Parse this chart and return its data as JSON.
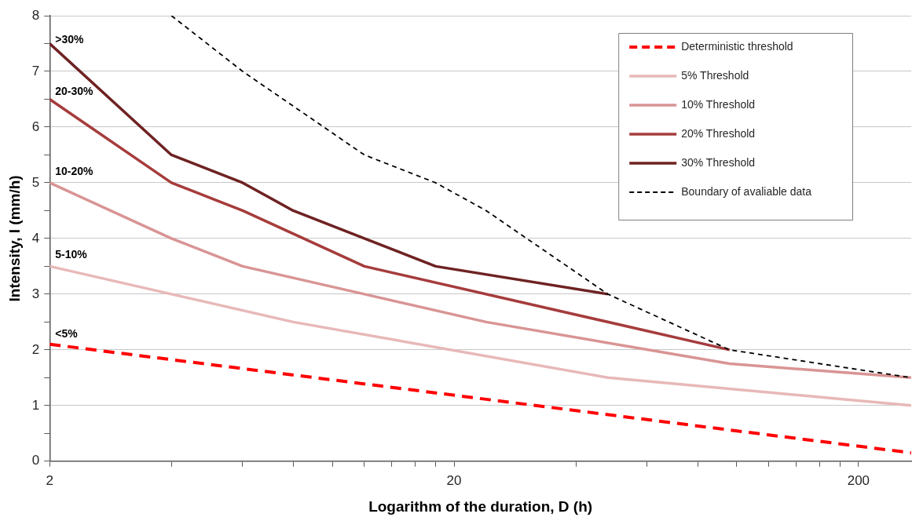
{
  "chart_data": {
    "type": "line",
    "xlabel": "Logarithm of the duration, D (h)",
    "ylabel": "Intensity, I (mm/h)",
    "log": "x",
    "xlim": [
      2,
      270
    ],
    "xticks": [
      2,
      {
        "value": 4,
        "label": null
      },
      {
        "value": 6,
        "label": null
      },
      {
        "value": 8,
        "label": null
      },
      {
        "value": 10,
        "label": null
      },
      {
        "value": 12,
        "label": null
      },
      {
        "value": 14,
        "label": null
      },
      {
        "value": 16,
        "label": null
      },
      {
        "value": 18,
        "label": null
      },
      20,
      {
        "value": 40,
        "label": null
      },
      {
        "value": 60,
        "label": null
      },
      {
        "value": 80,
        "label": null
      },
      {
        "value": 100,
        "label": null
      },
      {
        "value": 120,
        "label": null
      },
      {
        "value": 140,
        "label": null
      },
      {
        "value": 160,
        "label": null
      },
      {
        "value": 180,
        "label": null
      },
      200
    ],
    "ylim": [
      0,
      8
    ],
    "yticks": [
      0,
      {
        "value": 0.5,
        "label": null
      },
      1,
      {
        "value": 1.5,
        "label": null
      },
      2,
      {
        "value": 2.5,
        "label": null
      },
      3,
      {
        "value": 3.5,
        "label": null
      },
      4,
      {
        "value": 4.5,
        "label": null
      },
      5,
      {
        "value": 5.5,
        "label": null
      },
      6,
      {
        "value": 6.5,
        "label": null
      },
      7,
      {
        "value": 7.5,
        "label": null
      },
      8
    ],
    "grid": "y",
    "legend": "top right",
    "marker": "none",
    "series": [
      {
        "name": "Deterministic threshold",
        "color": "#ff0000",
        "line_style": "dashed",
        "x": [
          2,
          270
        ],
        "values": [
          2.1,
          0.15
        ]
      },
      {
        "name": "5% Threshold",
        "color": "#e8b8b8",
        "line_style": "solid",
        "x": [
          2,
          4,
          8,
          48,
          270
        ],
        "values": [
          3.5,
          3.0,
          2.5,
          1.5,
          1.0
        ]
      },
      {
        "name": "10% Threshold",
        "color": "#d99494",
        "line_style": "solid",
        "x": [
          2,
          4,
          6,
          12,
          24,
          96,
          270
        ],
        "values": [
          5.0,
          4.0,
          3.5,
          3.0,
          2.5,
          1.75,
          1.5
        ]
      },
      {
        "name": "20% Threshold",
        "color": "#a63c3c",
        "line_style": "solid",
        "x": [
          2,
          4,
          6,
          12,
          96
        ],
        "values": [
          6.5,
          5.0,
          4.5,
          3.5,
          2.0
        ]
      },
      {
        "name": "30% Threshold",
        "color": "#6e2222",
        "line_style": "solid",
        "x": [
          2,
          4,
          6,
          8,
          12,
          18,
          48
        ],
        "values": [
          7.5,
          5.5,
          5.0,
          4.5,
          4.0,
          3.5,
          3.0
        ]
      },
      {
        "name": "Boundary of avaliable data",
        "color": "#000000",
        "line_style": "dotted",
        "x": [
          4,
          6,
          12,
          18,
          24,
          48,
          96,
          270
        ],
        "values": [
          8.0,
          7.0,
          5.5,
          5.0,
          4.5,
          3.0,
          2.0,
          1.5
        ]
      }
    ],
    "annotations": [
      ">30%",
      "20-30%",
      "10-20%",
      "5-10%",
      "<5%"
    ]
  }
}
